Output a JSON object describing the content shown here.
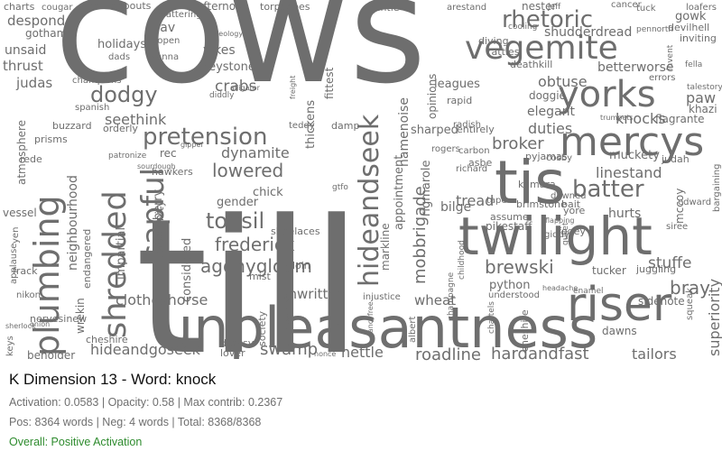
{
  "title": "K Dimension 13 - Word: knock",
  "stats_line": "Activation: 0.0583 | Opacity: 0.58 | Max contrib: 0.2367",
  "counts_line": "Pos: 8364 words | Neg: 4 words | Total: 8368/8368",
  "overall": "Overall: Positive Activation",
  "colors": {
    "cloud_word": "#6e6e6e",
    "overall_text": "#2e8b2e",
    "title_text": "#111111",
    "info_text": "#6f6f6f"
  },
  "cloud_words": [
    "cows",
    "till",
    "unpleasantness",
    "twilight",
    "tis",
    "vegemite",
    "mercys",
    "yorks",
    "riser",
    "plumbing",
    "shredded",
    "capful",
    "hideandseek",
    "rhetoric",
    "pretension",
    "tonsil",
    "frederick",
    "agonygloom",
    "lowered",
    "dodgy",
    "mobbrigade",
    "batter",
    "brewski",
    "roadline",
    "hardandfast",
    "swamp",
    "nettle",
    "tailors",
    "linestand",
    "stuffe",
    "bray",
    "superiority",
    "knocks",
    "duties",
    "broker",
    "crabs",
    "seethink",
    "holidays",
    "yikes",
    "keystone",
    "despond",
    "unsaid",
    "thrust",
    "judas",
    "gotham",
    "charts",
    "roundabouts",
    "afternoon",
    "torpedoes",
    "mantle",
    "arestand",
    "nester",
    "cancer",
    "tuck",
    "loafers",
    "gowk",
    "devilhell",
    "shudderdread",
    "diving",
    "rattles",
    "deathkill",
    "betterworse",
    "obtuse",
    "paw",
    "khazi",
    "elegant",
    "flagrante",
    "muckety",
    "judah",
    "hurts",
    "fogey",
    "tucker",
    "juggling",
    "sidenote",
    "dawns",
    "shoelaces",
    "unwritten",
    "wheat",
    "python",
    "converted",
    "society",
    "clotheshorse",
    "hideandgoseek",
    "beholder",
    "cheshire",
    "nervesinew",
    "nikon",
    "frack",
    "vessel",
    "rede",
    "prisms",
    "buzzard",
    "orderly",
    "hawkers",
    "rec",
    "dynamite",
    "gender",
    "chick",
    "community",
    "considered",
    "impartial",
    "strawberry",
    "endangered",
    "neighbourhood",
    "wrekin",
    "atmosphere",
    "appointment",
    "namenoise",
    "rigmarole",
    "markline",
    "opinions",
    "leagues",
    "sharped",
    "entirely",
    "asbe",
    "bilge",
    "tread",
    "kumara",
    "brimstone",
    "pikestaff",
    "pyjamas",
    "doggie",
    "champions",
    "spanish",
    "assume",
    "thickens",
    "fittest",
    "sav",
    "gopen",
    "dads",
    "wanna",
    "ideology",
    "alligator",
    "diddly",
    "teddy",
    "damp",
    "sourdough",
    "mist",
    "doin",
    "gtfo",
    "yen",
    "applause",
    "keys",
    "bait",
    "yore",
    "cosby",
    "richard",
    "rogers",
    "rapid",
    "radish",
    "carbon",
    "dawned",
    "tape",
    "giddy",
    "flapping",
    "chattering",
    "cougar",
    "cooling",
    "jeff",
    "pennorth",
    "invent",
    "inviting",
    "talestory",
    "bargaining",
    "edward",
    "siree",
    "mccoy",
    "squeak",
    "errors",
    "fella",
    "trumpets",
    "onion",
    "sherlock",
    "patronize",
    "gipper",
    "injustice",
    "understood",
    "cheshire",
    "albert",
    "nonce",
    "dropsy",
    "lover",
    "fancyfree",
    "champagne",
    "childhood",
    "chattels",
    "freight",
    "gullet",
    "enamel",
    "headache"
  ]
}
